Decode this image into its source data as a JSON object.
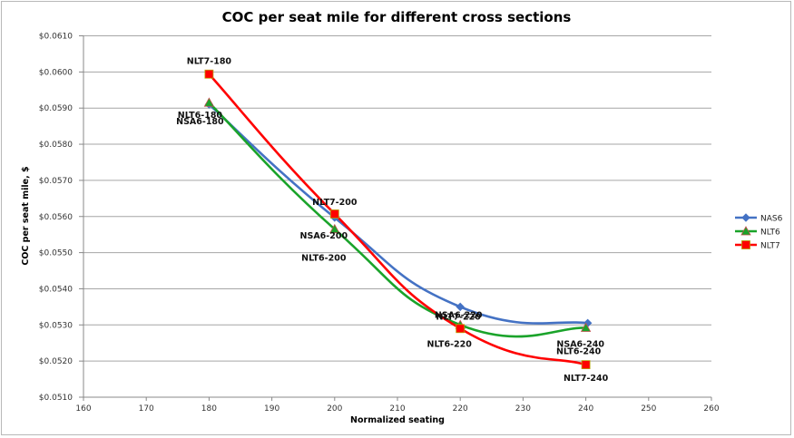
{
  "chart_data": {
    "type": "line",
    "title": "COC per seat mile for different cross sections",
    "xlabel": "Normalized seating",
    "ylabel": "COC per seat mile, $",
    "xlim": [
      160,
      260
    ],
    "ylim": [
      0.051,
      0.061
    ],
    "x_ticks": [
      160,
      170,
      180,
      190,
      200,
      210,
      220,
      230,
      240,
      250,
      260
    ],
    "y_ticks": [
      0.051,
      0.052,
      0.053,
      0.054,
      0.055,
      0.056,
      0.057,
      0.058,
      0.059,
      0.06,
      0.061
    ],
    "y_tick_labels": [
      "$0.0510",
      "$0.0520",
      "$0.0530",
      "$0.0540",
      "$0.0550",
      "$0.0560",
      "$0.0570",
      "$0.0580",
      "$0.0590",
      "$0.0600",
      "$0.0610"
    ],
    "grid": "horizontal",
    "legend_position": "right",
    "smoothed": true,
    "series": [
      {
        "name": "NAS6",
        "color": "#4472C4",
        "marker": "diamond",
        "x": [
          180,
          200,
          220,
          240.3
        ],
        "values": [
          0.0591,
          0.05597,
          0.0535,
          0.05305
        ],
        "labels": [
          "NSA6-180",
          "NSA6-200",
          "NSA6-220",
          "NSA6-240"
        ]
      },
      {
        "name": "NLT6",
        "color": "#1AA32A",
        "marker": "triangle",
        "x": [
          180,
          200,
          220,
          240
        ],
        "values": [
          0.05915,
          0.05565,
          0.053,
          0.05292
        ],
        "labels": [
          "NLT6-180",
          "NLT6-200",
          "NLT6-220",
          "NLT6-240"
        ]
      },
      {
        "name": "NLT7",
        "color": "#FF0000",
        "marker": "square",
        "x": [
          180,
          200,
          220,
          240
        ],
        "values": [
          0.05994,
          0.05607,
          0.0529,
          0.0519
        ],
        "labels": [
          "NLT7-180",
          "NLT7-200",
          "NLT7-220",
          "NLT7-240"
        ]
      }
    ]
  }
}
